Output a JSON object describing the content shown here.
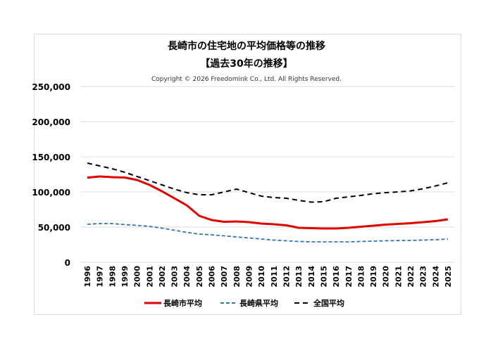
{
  "chart_data": {
    "type": "line",
    "title": "長崎市の住宅地の平均価格等の推移",
    "subtitle": "【過去30年の推移】",
    "copyright": "Copyright © 2026 Freedomink Co., Ltd. All Rights Reserved.",
    "xlabel": "",
    "ylabel": "",
    "ylim": [
      0,
      250000
    ],
    "yticks": [
      "0",
      "50,000",
      "100,000",
      "150,000",
      "200,000",
      "250,000"
    ],
    "grid": true,
    "legend_position": "bottom",
    "categories": [
      "1996",
      "1997",
      "1998",
      "1999",
      "2000",
      "2001",
      "2002",
      "2003",
      "2004",
      "2005",
      "2006",
      "2007",
      "2008",
      "2009",
      "2010",
      "2011",
      "2012",
      "2013",
      "2014",
      "2015",
      "2016",
      "2017",
      "2018",
      "2019",
      "2020",
      "2021",
      "2022",
      "2023",
      "2024",
      "2025"
    ],
    "series": [
      {
        "name": "長崎市平均",
        "color": "#e00000",
        "style": "solid",
        "values": [
          120400,
          122000,
          121000,
          120500,
          117000,
          110000,
          101000,
          91000,
          81000,
          66000,
          60000,
          57500,
          58000,
          57000,
          55000,
          54000,
          52500,
          49000,
          48500,
          48000,
          48000,
          49000,
          50500,
          52000,
          53500,
          54500,
          55500,
          57000,
          58500,
          61000
        ]
      },
      {
        "name": "長崎県平均",
        "color": "#2e75b6",
        "style": "dashed",
        "values": [
          54000,
          55000,
          55000,
          53500,
          52500,
          51000,
          48500,
          45500,
          42500,
          40000,
          39000,
          37500,
          36000,
          34500,
          33000,
          31500,
          30500,
          29500,
          29000,
          29000,
          29000,
          29000,
          29500,
          30000,
          30500,
          30800,
          31000,
          31500,
          32000,
          33000
        ]
      },
      {
        "name": "全国平均",
        "color": "#000000",
        "style": "dashed",
        "values": [
          141000,
          137000,
          133000,
          128000,
          122000,
          116000,
          110000,
          104000,
          99000,
          96000,
          96000,
          100000,
          104000,
          99000,
          94000,
          92000,
          91000,
          88000,
          85500,
          86000,
          91000,
          93000,
          95000,
          97500,
          99000,
          100000,
          101500,
          104500,
          108500,
          113000
        ]
      }
    ]
  }
}
